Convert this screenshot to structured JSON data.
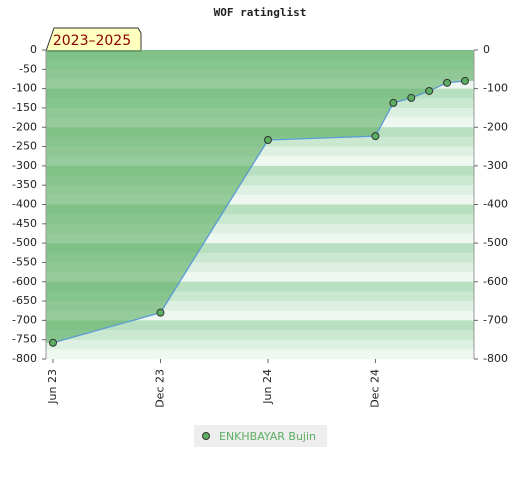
{
  "chart_data": {
    "type": "line",
    "title": "WOF ratinglist",
    "badge": "2023–2025",
    "x": [
      "2023-06",
      "2023-12",
      "2024-06",
      "2024-12",
      "2025-01",
      "2025-02",
      "2025-03",
      "2025-04",
      "2025-05"
    ],
    "xlim": [
      "2023-06",
      "2025-05"
    ],
    "xticks": [
      {
        "value": "2023-06",
        "label": "Jun 23"
      },
      {
        "value": "2023-12",
        "label": "Dec 23"
      },
      {
        "value": "2024-06",
        "label": "Jun 24"
      },
      {
        "value": "2024-12",
        "label": "Dec 24"
      }
    ],
    "series": [
      {
        "name": "ENKHBAYAR Bujin",
        "color": "#5b9bd5",
        "marker_color": "#5cae63",
        "values": [
          -758,
          -680,
          -233,
          -223,
          -137,
          -124,
          -106,
          -85,
          -80
        ]
      }
    ],
    "ylim": [
      -800,
      0
    ],
    "yticks": [
      0,
      -50,
      -100,
      -150,
      -200,
      -250,
      -300,
      -350,
      -400,
      -450,
      -500,
      -550,
      -600,
      -650,
      -700,
      -750,
      -800
    ],
    "y2lim": [
      -800,
      0
    ],
    "y2ticks": [
      0,
      -100,
      -200,
      -300,
      -400,
      -500,
      -600,
      -700,
      -800
    ]
  }
}
